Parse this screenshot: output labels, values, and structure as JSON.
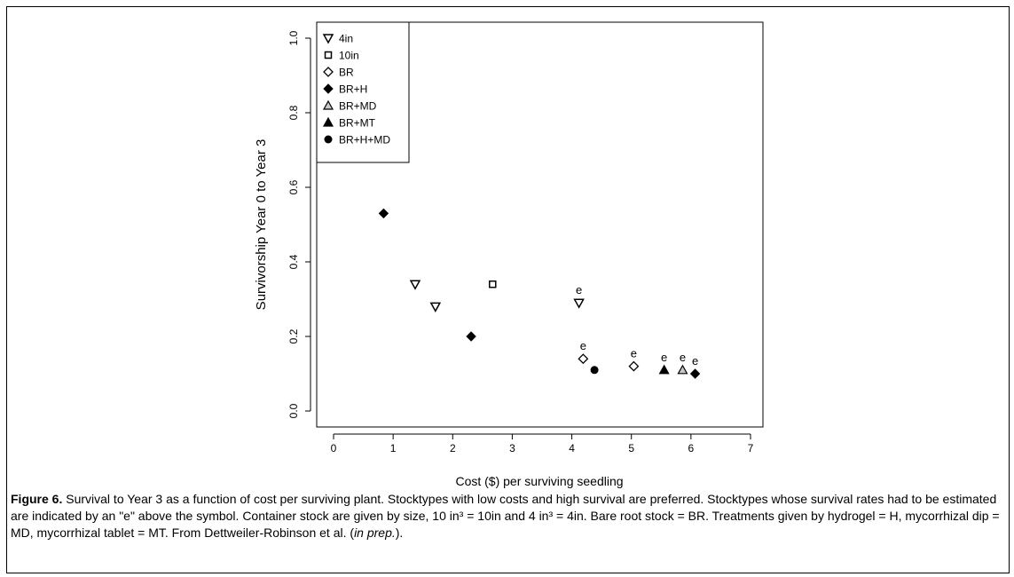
{
  "chart_data": {
    "type": "scatter",
    "title": "",
    "xlabel": "Cost ($) per surviving seedling",
    "ylabel": "Survivorship Year 0 to Year 3",
    "xlim": [
      0,
      7
    ],
    "ylim": [
      0,
      1.0
    ],
    "x_ticks": [
      "0",
      "1",
      "2",
      "3",
      "4",
      "5",
      "6",
      "7"
    ],
    "y_ticks": [
      "0.0",
      "0.2",
      "0.4",
      "0.6",
      "0.8",
      "1.0"
    ],
    "legend_position": "top-left",
    "series": [
      {
        "name": "4in",
        "marker": "triangle-down-open",
        "points": [
          {
            "x": 1.37,
            "y": 0.34
          },
          {
            "x": 1.71,
            "y": 0.28
          },
          {
            "x": 4.12,
            "y": 0.29,
            "label": "e"
          }
        ]
      },
      {
        "name": "10in",
        "marker": "square-open",
        "points": [
          {
            "x": 2.67,
            "y": 0.34
          }
        ]
      },
      {
        "name": "BR",
        "marker": "diamond-open",
        "points": [
          {
            "x": 4.19,
            "y": 0.14,
            "label": "e"
          },
          {
            "x": 5.04,
            "y": 0.12,
            "label": "e"
          }
        ]
      },
      {
        "name": "BR+H",
        "marker": "diamond-filled",
        "points": [
          {
            "x": 0.84,
            "y": 0.53
          },
          {
            "x": 2.31,
            "y": 0.2
          },
          {
            "x": 6.07,
            "y": 0.1,
            "label": "e"
          }
        ]
      },
      {
        "name": "BR+MD",
        "marker": "triangle-up-grey",
        "points": [
          {
            "x": 5.86,
            "y": 0.11,
            "label": "e"
          }
        ]
      },
      {
        "name": "BR+MT",
        "marker": "triangle-up-filled",
        "points": [
          {
            "x": 5.55,
            "y": 0.11,
            "label": "e"
          }
        ]
      },
      {
        "name": "BR+H+MD",
        "marker": "circle-filled",
        "points": [
          {
            "x": 4.38,
            "y": 0.11
          }
        ]
      }
    ]
  },
  "caption": {
    "figure_label": "Figure 6.",
    "text": " Survival to Year 3 as a function of cost per surviving plant. Stocktypes with low costs and high survival are preferred. Stocktypes whose survival rates had to be estimated are indicated by an \"e\" above the symbol. Container stock are given by size, 10 in³ = 10in and 4 in³ = 4in. Bare root stock = BR. Treatments given by hydrogel = H, mycorrhizal dip = MD, mycorrhizal tablet = MT. From Dettweiler-Robinson et al. (",
    "citation": "in prep.",
    "tail": ")."
  },
  "colors": {
    "grey_fill": "#c8c8c8",
    "ink": "#000000"
  }
}
